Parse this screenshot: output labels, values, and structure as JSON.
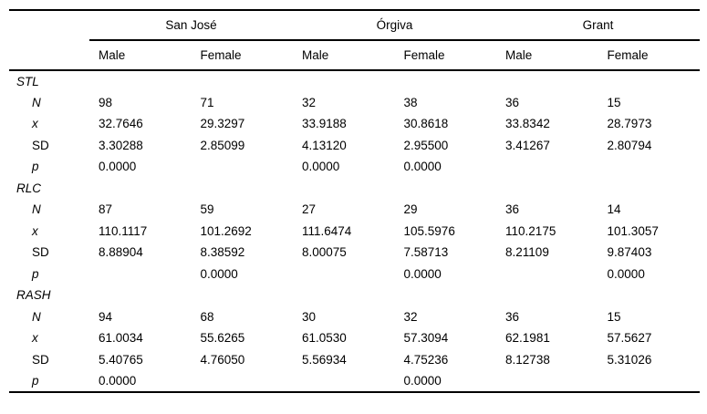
{
  "table": {
    "corner_label": "",
    "groups": [
      {
        "label": "San José"
      },
      {
        "label": "Órgiva"
      },
      {
        "label": "Grant"
      }
    ],
    "column_headers": [
      "Male",
      "Female",
      "Male",
      "Female",
      "Male",
      "Female"
    ],
    "sections": [
      {
        "label": "STL",
        "rows": [
          {
            "label": "N",
            "values": [
              "98",
              "71",
              "32",
              "38",
              "36",
              "15"
            ]
          },
          {
            "label": "x",
            "values": [
              "32.7646",
              "29.3297",
              "33.9188",
              "30.8618",
              "33.8342",
              "28.7973"
            ]
          },
          {
            "label": "SD",
            "values": [
              "3.30288",
              "2.85099",
              "4.13120",
              "2.95500",
              "3.41267",
              "2.80794"
            ]
          },
          {
            "label": "p",
            "values": [
              "0.0000",
              "",
              "0.0000",
              "0.0000",
              "",
              ""
            ]
          }
        ]
      },
      {
        "label": "RLC",
        "rows": [
          {
            "label": "N",
            "values": [
              "87",
              "59",
              "27",
              "29",
              "36",
              "14"
            ]
          },
          {
            "label": "x",
            "values": [
              "110.1117",
              "101.2692",
              "111.6474",
              "105.5976",
              "110.2175",
              "101.3057"
            ]
          },
          {
            "label": "SD",
            "values": [
              "8.88904",
              "8.38592",
              "8.00075",
              "7.58713",
              "8.21109",
              "9.87403"
            ]
          },
          {
            "label": "p",
            "values": [
              "",
              "0.0000",
              "",
              "0.0000",
              "",
              "0.0000"
            ]
          }
        ]
      },
      {
        "label": "RASH",
        "rows": [
          {
            "label": "N",
            "values": [
              "94",
              "68",
              "30",
              "32",
              "36",
              "15"
            ]
          },
          {
            "label": "x",
            "values": [
              "61.0034",
              "55.6265",
              "61.0530",
              "57.3094",
              "62.1981",
              "57.5627"
            ]
          },
          {
            "label": "SD",
            "values": [
              "5.40765",
              "4.76050",
              "5.56934",
              "4.75236",
              "8.12738",
              "5.31026"
            ]
          },
          {
            "label": "p",
            "values": [
              "0.0000",
              "",
              "",
              "0.0000",
              "",
              ""
            ]
          }
        ]
      }
    ]
  }
}
